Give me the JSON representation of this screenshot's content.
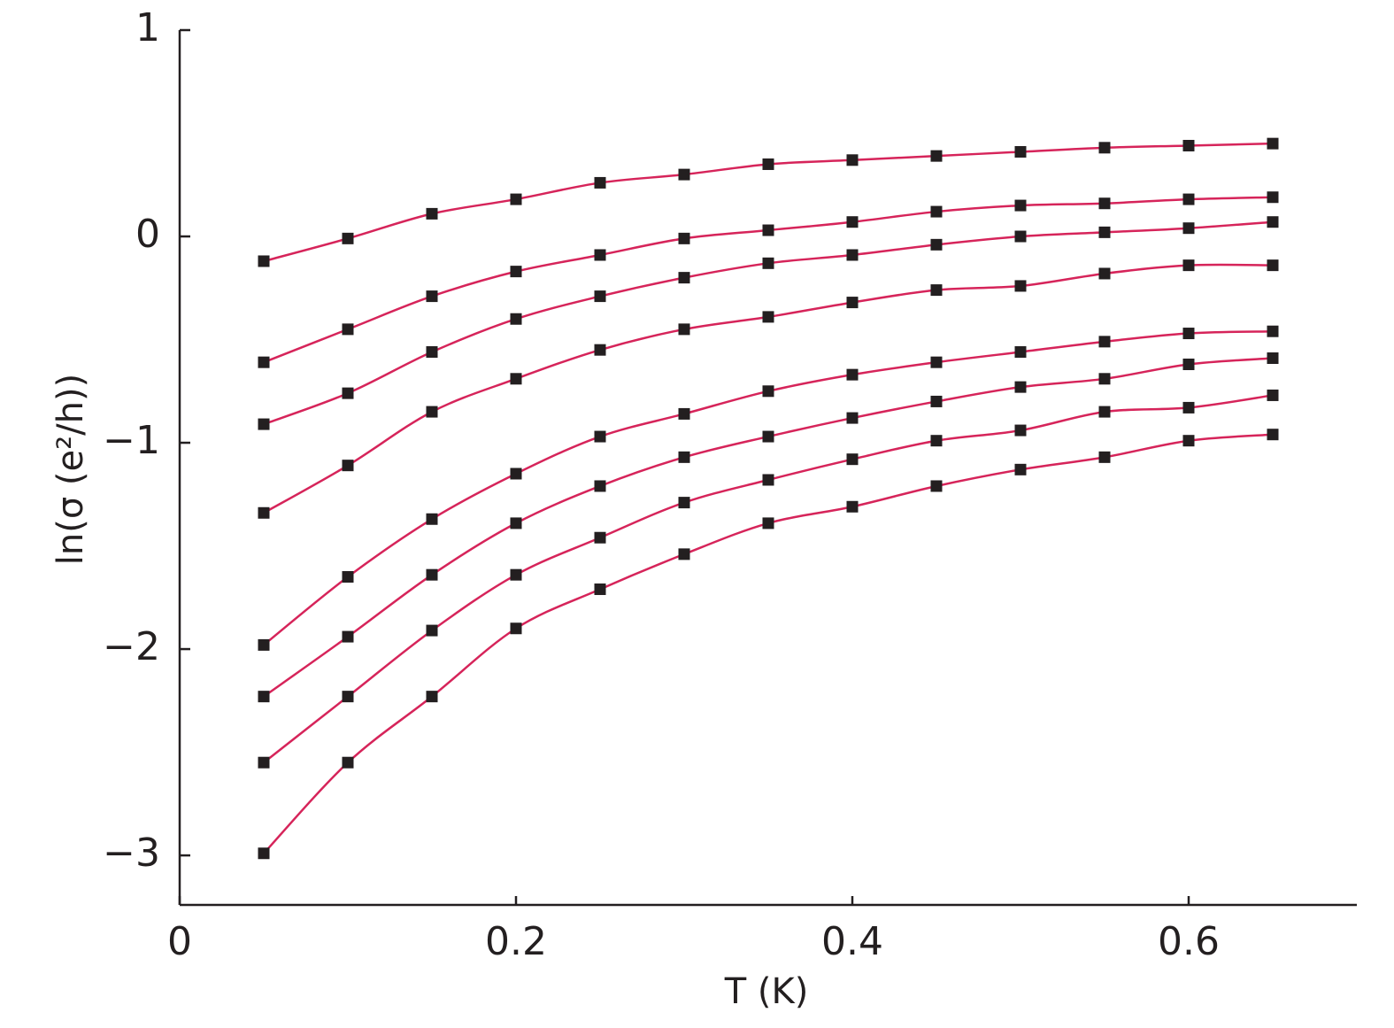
{
  "chart_data": {
    "type": "scatter",
    "xlabel": "T (K)",
    "ylabel": "ln(σ (e²/h))",
    "x": [
      0.05,
      0.1,
      0.15,
      0.2,
      0.25,
      0.3,
      0.35,
      0.4,
      0.45,
      0.5,
      0.55,
      0.6,
      0.65
    ],
    "color": "#231f20",
    "line_color": "#d6245a",
    "series": [
      {
        "values": [
          -0.12,
          -0.01,
          0.11,
          0.18,
          0.26,
          0.3,
          0.35,
          0.37,
          0.39,
          0.41,
          0.43,
          0.44,
          0.45
        ]
      },
      {
        "values": [
          -0.61,
          -0.45,
          -0.29,
          -0.17,
          -0.09,
          -0.01,
          0.03,
          0.07,
          0.12,
          0.15,
          0.16,
          0.18,
          0.19
        ]
      },
      {
        "values": [
          -0.91,
          -0.76,
          -0.56,
          -0.4,
          -0.29,
          -0.2,
          -0.13,
          -0.09,
          -0.04,
          0.0,
          0.02,
          0.04,
          0.07
        ]
      },
      {
        "values": [
          -1.34,
          -1.11,
          -0.85,
          -0.69,
          -0.55,
          -0.45,
          -0.39,
          -0.32,
          -0.26,
          -0.24,
          -0.18,
          -0.14,
          -0.14
        ]
      },
      {
        "values": [
          -1.98,
          -1.65,
          -1.37,
          -1.15,
          -0.97,
          -0.86,
          -0.75,
          -0.67,
          -0.61,
          -0.56,
          -0.51,
          -0.47,
          -0.46
        ]
      },
      {
        "values": [
          -2.23,
          -1.94,
          -1.64,
          -1.39,
          -1.21,
          -1.07,
          -0.97,
          -0.88,
          -0.8,
          -0.73,
          -0.69,
          -0.62,
          -0.59
        ]
      },
      {
        "values": [
          -2.55,
          -2.23,
          -1.91,
          -1.64,
          -1.46,
          -1.29,
          -1.18,
          -1.08,
          -0.99,
          -0.94,
          -0.85,
          -0.83,
          -0.77
        ]
      },
      {
        "values": [
          -2.99,
          -2.55,
          -2.23,
          -1.9,
          -1.71,
          -1.54,
          -1.39,
          -1.31,
          -1.21,
          -1.13,
          -1.07,
          -0.99,
          -0.96
        ]
      }
    ],
    "xlim": [
      0,
      0.7
    ],
    "xticks": [
      0,
      0.2,
      0.4,
      0.6
    ],
    "ylim": [
      -3.24,
      1
    ],
    "yticks": [
      {
        "value": 1,
        "label": "1"
      },
      {
        "value": 0,
        "label": "0"
      },
      {
        "value": -1,
        "label": "−1"
      },
      {
        "value": -2,
        "label": "−2"
      },
      {
        "value": -3,
        "label": "−3"
      }
    ]
  }
}
